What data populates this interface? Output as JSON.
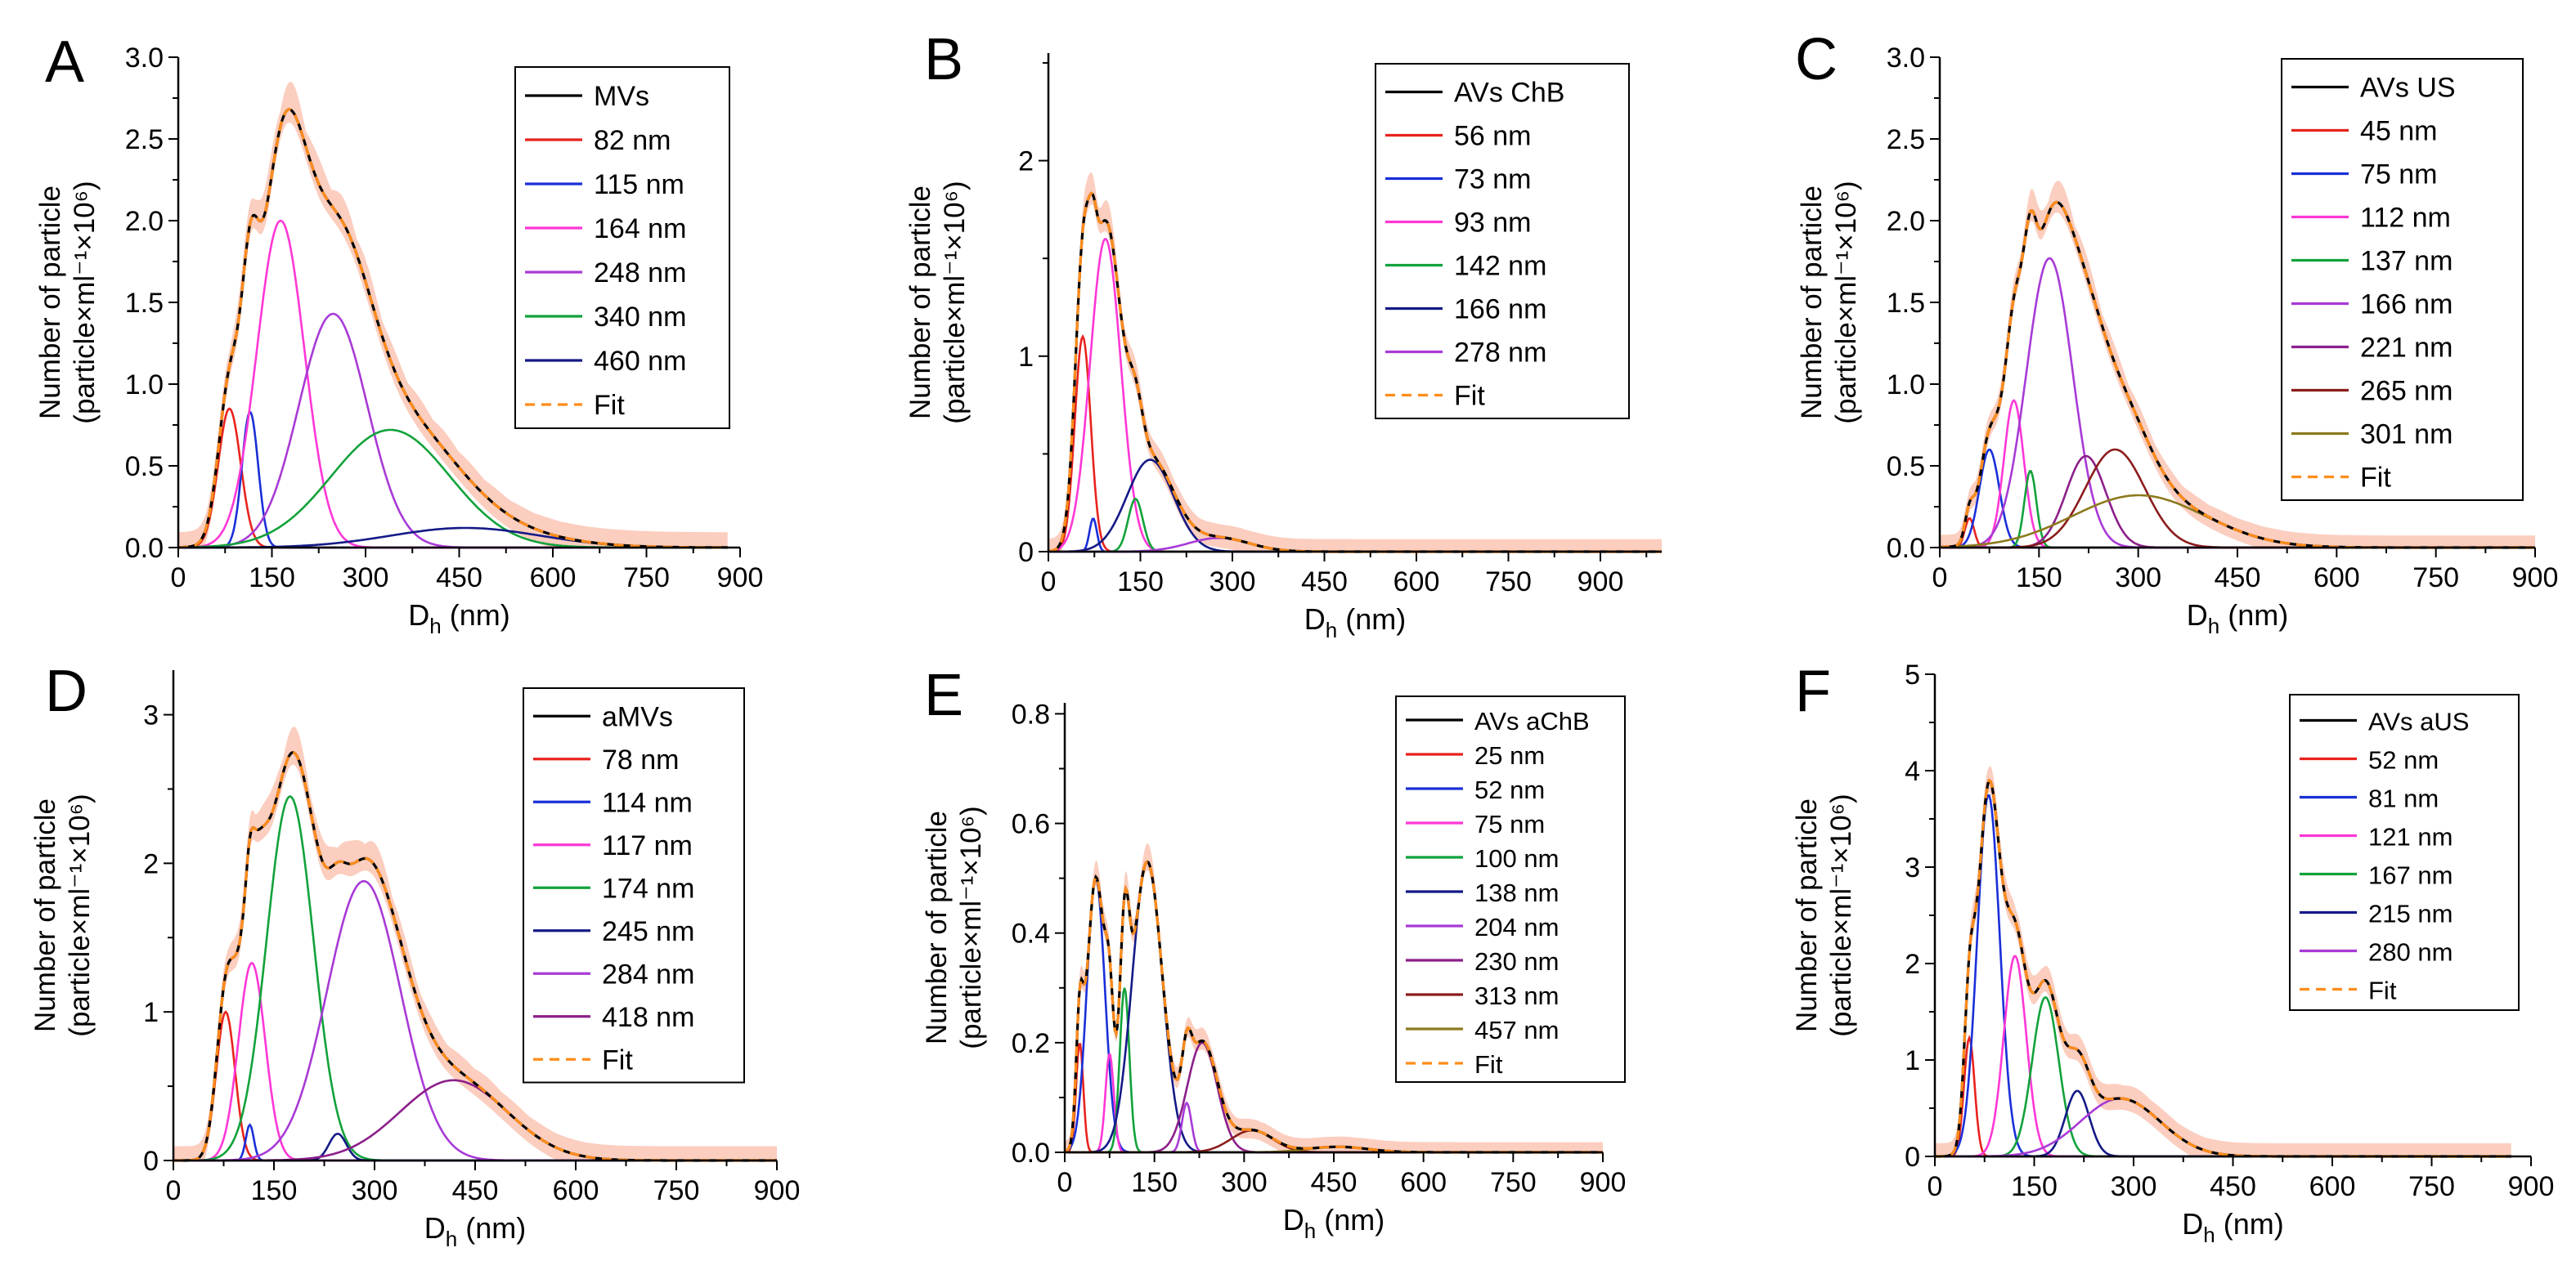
{
  "figure": "Six-panel figure of hydrodynamic-diameter (Dh) size distributions with multi-Gaussian fits",
  "colors": {
    "data": "#000000",
    "fit": "#ff8c1a",
    "band": "#f7a58a",
    "red": "#e8231e",
    "blue": "#1a2fd8",
    "magenta": "#ff37d6",
    "green": "#12a23b",
    "navy": "#141a86",
    "purple": "#a83ad6",
    "plum": "#8c1f8a",
    "brown": "#8c1c1c",
    "olive": "#8c7a1e"
  },
  "chart_data": [
    {
      "panel": "A",
      "type": "line",
      "xlabel": "D",
      "xlabel_sub": "h",
      "xlabel_unit": " (nm)",
      "ylabel_line1": "Number of particle",
      "ylabel_line2": "(particle×ml⁻¹×10⁶)",
      "xlim": [
        0,
        900
      ],
      "xticks": [
        0,
        150,
        300,
        450,
        600,
        750,
        900
      ],
      "ylim": [
        0,
        3.0
      ],
      "yticks": [
        0.0,
        0.5,
        1.0,
        1.5,
        2.0,
        2.5,
        3.0
      ],
      "yfmt": 1,
      "xmax_data": 880,
      "legend": [
        "MVs",
        "82 nm",
        "115 nm",
        "164 nm",
        "248 nm",
        "340 nm",
        "460 nm",
        "Fit"
      ],
      "components": [
        {
          "name": "82 nm",
          "center": 82,
          "height": 0.85,
          "sigma": 18,
          "color": "red"
        },
        {
          "name": "115 nm",
          "center": 115,
          "height": 0.83,
          "sigma": 13,
          "color": "blue"
        },
        {
          "name": "164 nm",
          "center": 164,
          "height": 2.0,
          "sigma": 38,
          "color": "magenta"
        },
        {
          "name": "248 nm",
          "center": 248,
          "height": 1.43,
          "sigma": 55,
          "color": "purple"
        },
        {
          "name": "340 nm",
          "center": 340,
          "height": 0.72,
          "sigma": 95,
          "color": "green"
        },
        {
          "name": "460 nm",
          "center": 460,
          "height": 0.12,
          "sigma": 120,
          "color": "navy"
        }
      ]
    },
    {
      "panel": "B",
      "type": "line",
      "xlabel": "D",
      "xlabel_sub": "h",
      "xlabel_unit": " (nm)",
      "ylabel_line1": "Number of particle",
      "ylabel_line2": "(particle×ml⁻¹×10⁶)",
      "xlim": [
        0,
        1000
      ],
      "xticks": [
        0,
        150,
        300,
        450,
        600,
        750,
        900
      ],
      "ylim": [
        0,
        2.55
      ],
      "yticks": [
        0,
        1,
        2
      ],
      "yfmt": 0,
      "xmax_data": 1000,
      "legend": [
        "AVs ChB",
        "56 nm",
        "73 nm",
        "93 nm",
        "142 nm",
        "166 nm",
        "278 nm",
        "Fit"
      ],
      "components": [
        {
          "name": "56 nm",
          "center": 56,
          "height": 1.1,
          "sigma": 13,
          "color": "red"
        },
        {
          "name": "73 nm",
          "center": 73,
          "height": 0.17,
          "sigma": 6,
          "color": "blue"
        },
        {
          "name": "93 nm",
          "center": 93,
          "height": 1.6,
          "sigma": 25,
          "color": "magenta"
        },
        {
          "name": "142 nm",
          "center": 142,
          "height": 0.27,
          "sigma": 12,
          "color": "green"
        },
        {
          "name": "166 nm",
          "center": 166,
          "height": 0.47,
          "sigma": 38,
          "color": "navy"
        },
        {
          "name": "278 nm",
          "center": 278,
          "height": 0.07,
          "sigma": 50,
          "color": "purple"
        }
      ]
    },
    {
      "panel": "C",
      "type": "line",
      "xlabel": "D",
      "xlabel_sub": "h",
      "xlabel_unit": " (nm)",
      "ylabel_line1": "Number of particle",
      "ylabel_line2": "(particle×ml⁻¹×10⁶)",
      "xlim": [
        0,
        900
      ],
      "xticks": [
        0,
        150,
        300,
        450,
        600,
        750,
        900
      ],
      "ylim": [
        0,
        3.0
      ],
      "yticks": [
        0.0,
        0.5,
        1.0,
        1.5,
        2.0,
        2.5,
        3.0
      ],
      "yfmt": 1,
      "xmax_data": 900,
      "legend": [
        "AVs  US",
        "45 nm",
        "75 nm",
        "112 nm",
        "137 nm",
        "166 nm",
        "221 nm",
        "265 nm",
        "301 nm",
        "Fit"
      ],
      "components": [
        {
          "name": "45 nm",
          "center": 45,
          "height": 0.18,
          "sigma": 7,
          "color": "red"
        },
        {
          "name": "75 nm",
          "center": 75,
          "height": 0.6,
          "sigma": 15,
          "color": "blue"
        },
        {
          "name": "112 nm",
          "center": 112,
          "height": 0.9,
          "sigma": 15,
          "color": "magenta"
        },
        {
          "name": "137 nm",
          "center": 137,
          "height": 0.47,
          "sigma": 9,
          "color": "green"
        },
        {
          "name": "166 nm",
          "center": 166,
          "height": 1.77,
          "sigma": 35,
          "color": "purple"
        },
        {
          "name": "221 nm",
          "center": 221,
          "height": 0.56,
          "sigma": 30,
          "color": "plum"
        },
        {
          "name": "265 nm",
          "center": 265,
          "height": 0.6,
          "sigma": 45,
          "color": "brown"
        },
        {
          "name": "301 nm",
          "center": 301,
          "height": 0.32,
          "sigma": 100,
          "color": "olive"
        }
      ]
    },
    {
      "panel": "D",
      "type": "line",
      "xlabel": "D",
      "xlabel_sub": "h",
      "xlabel_unit": " (nm)",
      "ylabel_line1": "Number of particle",
      "ylabel_line2": "(particle×ml⁻¹×10⁶)",
      "xlim": [
        0,
        900
      ],
      "xticks": [
        0,
        150,
        300,
        450,
        600,
        750,
        900
      ],
      "ylim": [
        0,
        3.3
      ],
      "yticks": [
        0,
        1,
        2,
        3
      ],
      "yfmt": 0,
      "xmax_data": 900,
      "legend": [
        "aMVs",
        "78 nm",
        "114 nm",
        "117 nm",
        "174 nm",
        "245 nm",
        "284 nm",
        "418 nm",
        "Fit"
      ],
      "components": [
        {
          "name": "78 nm",
          "center": 78,
          "height": 1.0,
          "sigma": 14,
          "color": "red"
        },
        {
          "name": "114 nm",
          "center": 114,
          "height": 0.24,
          "sigma": 6,
          "color": "blue"
        },
        {
          "name": "117 nm",
          "center": 117,
          "height": 1.33,
          "sigma": 20,
          "color": "magenta"
        },
        {
          "name": "174 nm",
          "center": 174,
          "height": 2.45,
          "sigma": 35,
          "color": "green"
        },
        {
          "name": "245 nm",
          "center": 245,
          "height": 0.18,
          "sigma": 13,
          "color": "navy"
        },
        {
          "name": "284 nm",
          "center": 284,
          "height": 1.88,
          "sigma": 55,
          "color": "purple"
        },
        {
          "name": "418 nm",
          "center": 418,
          "height": 0.54,
          "sigma": 80,
          "color": "plum"
        }
      ]
    },
    {
      "panel": "E",
      "type": "line",
      "xlabel": "D",
      "xlabel_sub": "h",
      "xlabel_unit": " (nm)",
      "ylabel_line1": "Number of particle",
      "ylabel_line2": "(particle×ml⁻¹×10⁶)",
      "xlim": [
        0,
        900
      ],
      "xticks": [
        0,
        150,
        300,
        450,
        600,
        750,
        900
      ],
      "ylim": [
        0,
        0.82
      ],
      "yticks": [
        0.0,
        0.2,
        0.4,
        0.6,
        0.8
      ],
      "yfmt": 1,
      "xmax_data": 900,
      "legend": [
        "AVs aChB",
        "25 nm",
        "52 nm",
        "75 nm",
        "100 nm",
        "138 nm",
        "204 nm",
        "230 nm",
        "313 nm",
        "457 nm",
        "Fit"
      ],
      "components": [
        {
          "name": "25 nm",
          "center": 25,
          "height": 0.2,
          "sigma": 6,
          "color": "red"
        },
        {
          "name": "52 nm",
          "center": 52,
          "height": 0.5,
          "sigma": 15,
          "color": "blue"
        },
        {
          "name": "75 nm",
          "center": 75,
          "height": 0.18,
          "sigma": 7,
          "color": "magenta"
        },
        {
          "name": "100 nm",
          "center": 100,
          "height": 0.3,
          "sigma": 8,
          "color": "green"
        },
        {
          "name": "138 nm",
          "center": 138,
          "height": 0.53,
          "sigma": 25,
          "color": "navy"
        },
        {
          "name": "204 nm",
          "center": 204,
          "height": 0.09,
          "sigma": 8,
          "color": "purple"
        },
        {
          "name": "230 nm",
          "center": 230,
          "height": 0.2,
          "sigma": 25,
          "color": "plum"
        },
        {
          "name": "313 nm",
          "center": 313,
          "height": 0.04,
          "sigma": 35,
          "color": "brown"
        },
        {
          "name": "457 nm",
          "center": 457,
          "height": 0.01,
          "sigma": 50,
          "color": "olive"
        }
      ]
    },
    {
      "panel": "F",
      "type": "line",
      "xlabel": "D",
      "xlabel_sub": "h",
      "xlabel_unit": " (nm)",
      "ylabel_line1": "Number of particle",
      "ylabel_line2": "(particle×ml⁻¹×10⁶)",
      "xlim": [
        0,
        900
      ],
      "xticks": [
        0,
        150,
        300,
        450,
        600,
        750,
        900
      ],
      "ylim": [
        0,
        5.0
      ],
      "yticks": [
        0,
        1,
        2,
        3,
        4,
        5
      ],
      "yfmt": 0,
      "xmax_data": 870,
      "legend": [
        "AVs  aUS",
        "52 nm",
        "81 nm",
        "121 nm",
        "167 nm",
        "215 nm",
        "280 nm",
        "Fit"
      ],
      "components": [
        {
          "name": "52 nm",
          "center": 52,
          "height": 1.23,
          "sigma": 8,
          "color": "red"
        },
        {
          "name": "81 nm",
          "center": 81,
          "height": 3.75,
          "sigma": 17,
          "color": "blue"
        },
        {
          "name": "121 nm",
          "center": 121,
          "height": 2.08,
          "sigma": 17,
          "color": "magenta"
        },
        {
          "name": "167 nm",
          "center": 167,
          "height": 1.65,
          "sigma": 20,
          "color": "green"
        },
        {
          "name": "215 nm",
          "center": 215,
          "height": 0.68,
          "sigma": 18,
          "color": "navy"
        },
        {
          "name": "280 nm",
          "center": 280,
          "height": 0.6,
          "sigma": 60,
          "color": "purple"
        }
      ]
    }
  ]
}
